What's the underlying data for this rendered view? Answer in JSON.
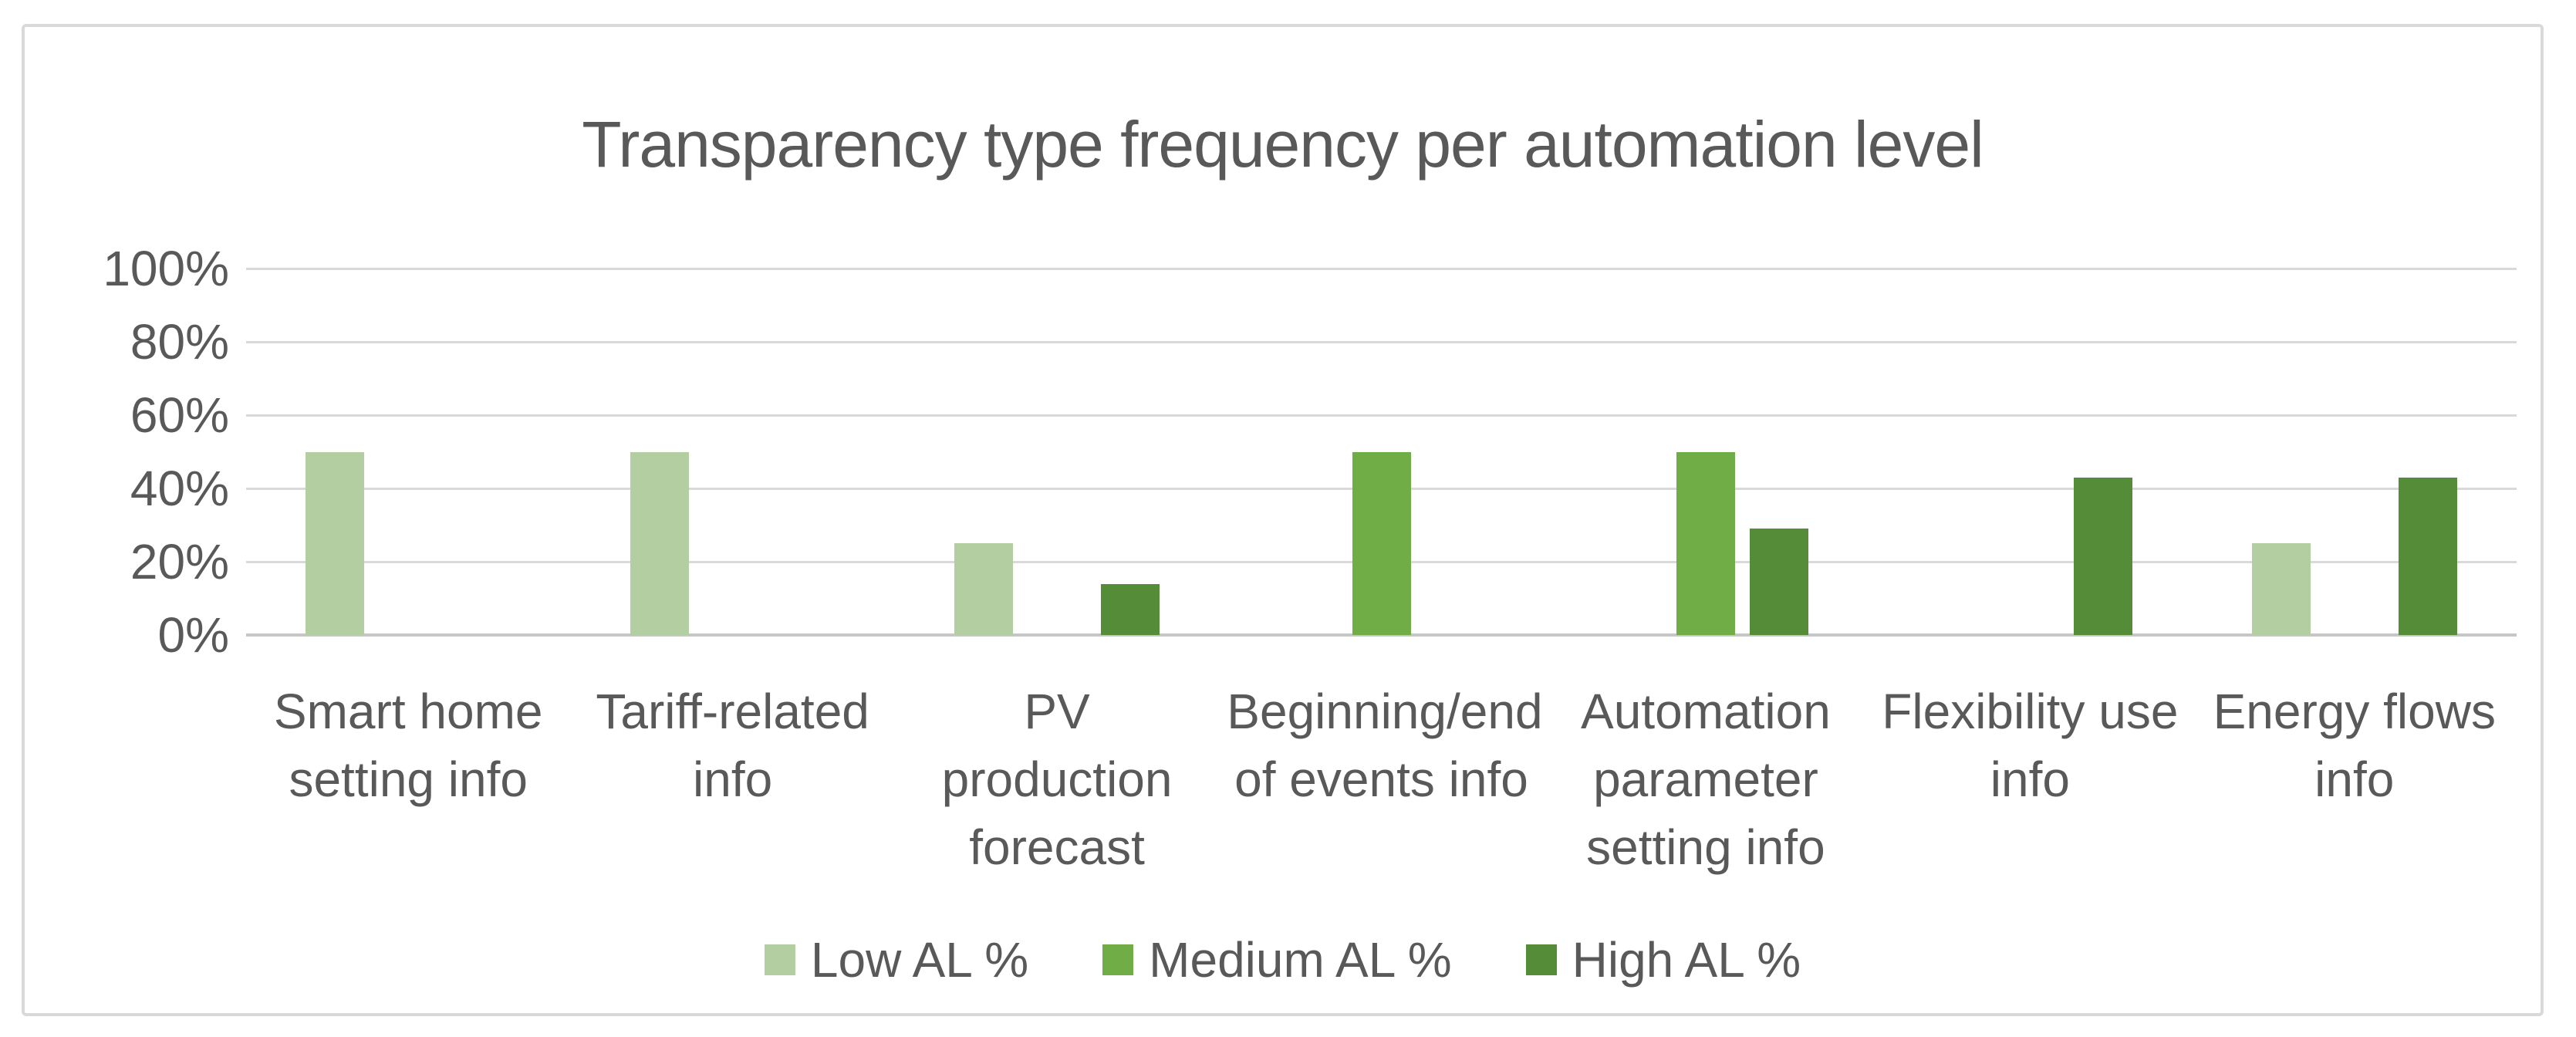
{
  "chart_data": {
    "type": "bar",
    "title": "Transparency type frequency per automation level",
    "categories": [
      "Smart home setting info",
      "Tariff-related info",
      "PV production forecast",
      "Beginning/end of events info",
      "Automation parameter setting info",
      "Flexibility use info",
      "Energy flows info"
    ],
    "series": [
      {
        "name": "Low AL %",
        "color": "#b3cfa2",
        "values": [
          50,
          50,
          25,
          0,
          0,
          0,
          25
        ]
      },
      {
        "name": "Medium AL %",
        "color": "#70ad47",
        "values": [
          0,
          0,
          0,
          50,
          50,
          0,
          0
        ]
      },
      {
        "name": "High AL %",
        "color": "#558c37",
        "values": [
          0,
          0,
          14,
          0,
          29,
          43,
          43
        ]
      }
    ],
    "xlabel": "",
    "ylabel": "",
    "ylim": [
      0,
      100
    ],
    "yticks": [
      "0%",
      "20%",
      "40%",
      "60%",
      "80%",
      "100%"
    ],
    "grid": true,
    "legend_position": "bottom"
  },
  "style": {
    "text_color": "#595959",
    "gridline_color": "#d9d9d9",
    "axis_line_color": "#c6c6c6",
    "frame_border_color": "#d9d9d9",
    "background": "#ffffff"
  }
}
